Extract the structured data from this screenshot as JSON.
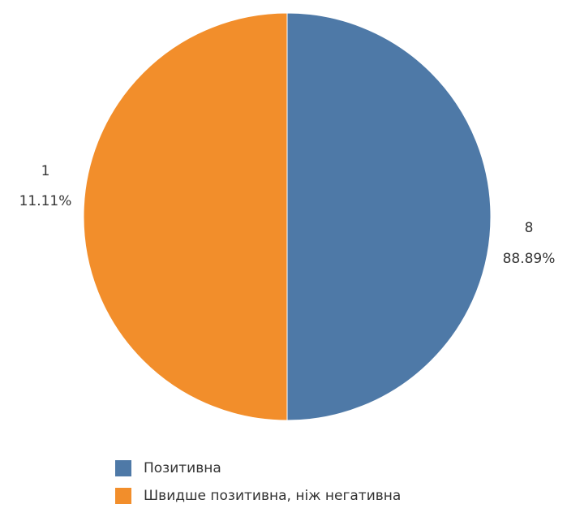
{
  "chart_data": {
    "type": "pie",
    "title": "",
    "slices": [
      {
        "name": "Позитивна",
        "value": 8,
        "percent_label": "88.89%",
        "value_label": "8",
        "color": "#4E79A7"
      },
      {
        "name": "Швидше позитивна, ніж негативна",
        "value": 1,
        "percent_label": "11.11%",
        "value_label": "1",
        "color": "#F28E2B"
      }
    ],
    "legend_position": "bottom-left"
  }
}
